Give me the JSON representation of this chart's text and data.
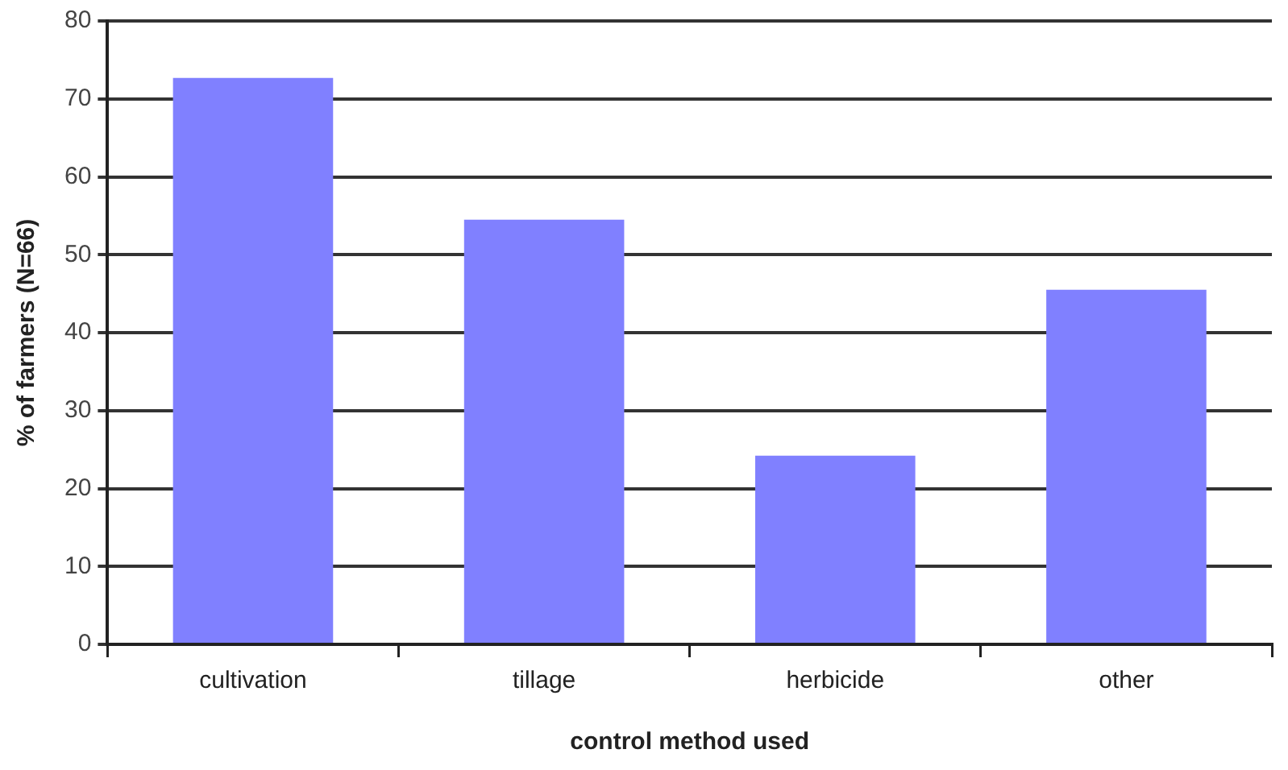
{
  "chart_data": {
    "type": "bar",
    "xlabel": "control method used",
    "ylabel": "% of farmers (N=66)",
    "categories": [
      "cultivation",
      "tillage",
      "herbicide",
      "other"
    ],
    "values": [
      72.7,
      54.5,
      24.2,
      45.5
    ],
    "color": "#8080ff",
    "ylim": [
      0,
      80
    ],
    "yticks": [
      0,
      10,
      20,
      30,
      40,
      50,
      60,
      70,
      80
    ],
    "grid": "y",
    "legend": false
  }
}
